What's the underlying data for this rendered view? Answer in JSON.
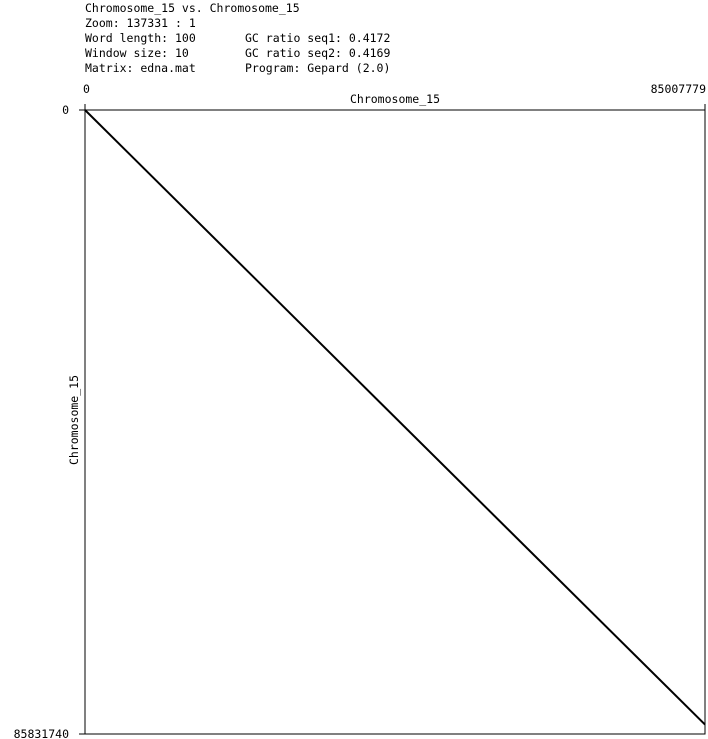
{
  "header": {
    "title": "Chromosome_15 vs. Chromosome_15",
    "zoom": "Zoom: 137331 : 1",
    "word_length": "Word length: 100",
    "window_size": "Window size: 10",
    "matrix": "Matrix: edna.mat",
    "gc_seq1": "GC ratio seq1: 0.4172",
    "gc_seq2": "GC ratio seq2: 0.4169",
    "program": "Program: Gepard (2.0)"
  },
  "chart_data": {
    "type": "scatter",
    "title": "Chromosome_15 vs. Chromosome_15",
    "xlabel": "Chromosome_15",
    "ylabel": "Chromosome_15",
    "xlim": [
      0,
      85007779
    ],
    "ylim": [
      0,
      85831740
    ],
    "x_tick_labels": [
      "0",
      "85007779"
    ],
    "y_tick_labels": [
      "0",
      "85831740"
    ],
    "y_inverted": true,
    "grid": false,
    "series": [
      {
        "points": [
          [
            0,
            0
          ],
          [
            85007779,
            85831740
          ]
        ]
      }
    ],
    "colors": {
      "line": "#000000",
      "frame": "#000000"
    }
  }
}
